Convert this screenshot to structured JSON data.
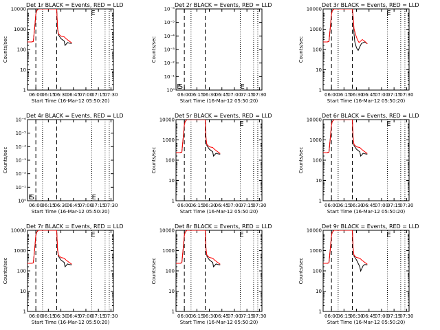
{
  "figure": {
    "background": "#ffffff",
    "axis_color": "#000000",
    "events_color": "#000000",
    "lld_color": "#ff0000"
  },
  "chart_data": [
    {
      "type": "line",
      "title": "Det 1r BLACK = Events, RED = LLD",
      "xlabel": "Start Time (16-Mar-12 05:50:20)",
      "ylabel": "Counts/sec",
      "xlim": [
        "05:50",
        "07:33"
      ],
      "ylim": [
        1,
        15000
      ],
      "yscale": "log",
      "xticks": [
        "06:00",
        "06:15",
        "06:30",
        "06:45",
        "07:00",
        "07:15",
        "07:30"
      ],
      "yticks": [
        "1",
        "10",
        "100",
        "1000",
        "10000"
      ],
      "dashed_lines": [
        "06:00",
        "06:25"
      ],
      "dotted_lines": [
        "06:08",
        "07:07",
        "07:23",
        "07:28"
      ],
      "markers": [
        {
          "text": "E",
          "x": "07:06",
          "y": 10000
        }
      ],
      "series": [
        {
          "color": "#000000",
          "x": [
            "05:50",
            "05:55",
            "05:57",
            "05:59",
            "06:00",
            "06:01",
            "06:03",
            "06:25",
            "06:26",
            "06:27",
            "06:30",
            "06:34",
            "06:35",
            "06:38",
            "06:40",
            "06:43"
          ],
          "y": [
            300,
            300,
            320,
            2500,
            8000,
            12000,
            15000,
            15000,
            1500,
            700,
            450,
            330,
            200,
            280,
            260,
            250
          ]
        },
        {
          "color": "#ff0000",
          "x": [
            "05:50",
            "05:55",
            "05:57",
            "05:59",
            "06:00",
            "06:01",
            "06:03",
            "06:25",
            "06:26",
            "06:27",
            "06:30",
            "06:34",
            "06:36",
            "06:40",
            "06:43"
          ],
          "y": [
            300,
            300,
            320,
            2500,
            8000,
            12000,
            15000,
            15000,
            1600,
            800,
            600,
            550,
            450,
            330,
            270
          ]
        }
      ]
    },
    {
      "type": "line",
      "title": "Det 2r BLACK = Events, RED = LLD",
      "xlabel": "Start Time (16-Mar-12 05:50:20)",
      "ylabel": "Counts/sec",
      "xlim": [
        "05:50",
        "07:33"
      ],
      "ylim": [
        1,
        1e-06
      ],
      "yscale": "log",
      "xticks": [
        "06:00",
        "06:15",
        "06:30",
        "06:45",
        "07:00",
        "07:15",
        "07:30"
      ],
      "yticks": [
        "10⁰",
        "10⁻¹",
        "10⁻²",
        "10⁻³",
        "10⁻⁴",
        "10⁻⁵",
        "10⁻⁶"
      ],
      "dashed_lines": [
        "06:00",
        "06:25"
      ],
      "dotted_lines": [
        "06:08",
        "07:07",
        "07:23",
        "07:28"
      ],
      "markers": [
        {
          "text": "E",
          "x": "05:51",
          "y": 1.4
        },
        {
          "text": "S",
          "x": "05:53",
          "y": 1.4
        },
        {
          "text": "E",
          "x": "07:07",
          "y": 1.4
        }
      ],
      "series": []
    },
    {
      "type": "line",
      "title": "Det 3r BLACK = Events, RED = LLD",
      "xlabel": "Start Time (16-Mar-12 05:50:20)",
      "ylabel": "Counts/sec",
      "xlim": [
        "05:50",
        "07:33"
      ],
      "ylim": [
        1,
        15000
      ],
      "yscale": "log",
      "xticks": [
        "06:00",
        "06:15",
        "06:30",
        "06:45",
        "07:00",
        "07:15",
        "07:30"
      ],
      "yticks": [
        "1",
        "10",
        "100",
        "1000",
        "10000"
      ],
      "dashed_lines": [
        "06:00",
        "06:25"
      ],
      "dotted_lines": [
        "06:08",
        "07:07",
        "07:23",
        "07:28"
      ],
      "markers": [
        {
          "text": "E",
          "x": "07:06",
          "y": 10000
        }
      ],
      "series": [
        {
          "color": "#000000",
          "x": [
            "05:50",
            "05:55",
            "05:57",
            "05:59",
            "06:00",
            "06:01",
            "06:03",
            "06:25",
            "06:26",
            "06:27",
            "06:28",
            "06:30",
            "06:32",
            "06:34",
            "06:36",
            "06:40",
            "06:43"
          ],
          "y": [
            300,
            300,
            320,
            2500,
            8000,
            12000,
            15000,
            15000,
            5000,
            800,
            300,
            150,
            110,
            170,
            250,
            300,
            240
          ]
        },
        {
          "color": "#ff0000",
          "x": [
            "05:50",
            "05:55",
            "05:57",
            "05:59",
            "06:00",
            "06:01",
            "06:03",
            "06:25",
            "06:26",
            "06:27",
            "06:29",
            "06:31",
            "06:33",
            "06:35",
            "06:37",
            "06:40",
            "06:43"
          ],
          "y": [
            300,
            300,
            320,
            2500,
            8000,
            12000,
            15000,
            15000,
            6000,
            1500,
            700,
            400,
            280,
            330,
            400,
            320,
            240
          ]
        }
      ]
    },
    {
      "type": "line",
      "title": "Det 4r BLACK = Events, RED = LLD",
      "xlabel": "Start Time (16-Mar-12 05:50:20)",
      "ylabel": "Counts/sec",
      "xlim": [
        "05:50",
        "07:33"
      ],
      "ylim": [
        1,
        1e-06
      ],
      "yscale": "log",
      "xticks": [
        "06:00",
        "06:15",
        "06:30",
        "06:45",
        "07:00",
        "07:15",
        "07:30"
      ],
      "yticks": [
        "10⁰",
        "10⁻¹",
        "10⁻²",
        "10⁻³",
        "10⁻⁴",
        "10⁻⁵",
        "10⁻⁶"
      ],
      "dashed_lines": [
        "06:00",
        "06:25"
      ],
      "dotted_lines": [
        "06:08",
        "07:07",
        "07:23",
        "07:28"
      ],
      "markers": [
        {
          "text": "E",
          "x": "05:51",
          "y": 1.4
        },
        {
          "text": "S",
          "x": "05:53",
          "y": 1.4
        },
        {
          "text": "E",
          "x": "07:07",
          "y": 1.4
        }
      ],
      "series": []
    },
    {
      "type": "line",
      "title": "Det 5r BLACK = Events, RED = LLD",
      "xlabel": "Start Time (16-Mar-12 05:50:20)",
      "ylabel": "Counts/sec",
      "xlim": [
        "05:50",
        "07:33"
      ],
      "ylim": [
        1,
        15000
      ],
      "yscale": "log",
      "xticks": [
        "06:00",
        "06:15",
        "06:30",
        "06:45",
        "07:00",
        "07:15",
        "07:30"
      ],
      "yticks": [
        "1",
        "10",
        "100",
        "1000",
        "10000"
      ],
      "dashed_lines": [
        "06:00",
        "06:25"
      ],
      "dotted_lines": [
        "06:08",
        "07:07",
        "07:23",
        "07:28"
      ],
      "markers": [
        {
          "text": "E",
          "x": "07:06",
          "y": 10000
        }
      ],
      "series": [
        {
          "color": "#000000",
          "x": [
            "05:50",
            "05:55",
            "05:57",
            "05:59",
            "06:00",
            "06:01",
            "06:03",
            "06:25",
            "06:26",
            "06:27",
            "06:30",
            "06:34",
            "06:35",
            "06:38",
            "06:40",
            "06:43"
          ],
          "y": [
            300,
            300,
            320,
            2500,
            8000,
            12000,
            15000,
            15000,
            1500,
            700,
            450,
            330,
            200,
            280,
            260,
            250
          ]
        },
        {
          "color": "#ff0000",
          "x": [
            "05:50",
            "05:55",
            "05:57",
            "05:59",
            "06:00",
            "06:01",
            "06:03",
            "06:25",
            "06:26",
            "06:27",
            "06:30",
            "06:34",
            "06:36",
            "06:40",
            "06:43"
          ],
          "y": [
            300,
            300,
            320,
            2500,
            8000,
            12000,
            15000,
            15000,
            1600,
            800,
            600,
            550,
            450,
            330,
            270
          ]
        }
      ]
    },
    {
      "type": "line",
      "title": "Det 6r BLACK = Events, RED = LLD",
      "xlabel": "Start Time (16-Mar-12 05:50:20)",
      "ylabel": "Counts/sec",
      "xlim": [
        "05:50",
        "07:33"
      ],
      "ylim": [
        1,
        15000
      ],
      "yscale": "log",
      "xticks": [
        "06:00",
        "06:15",
        "06:30",
        "06:45",
        "07:00",
        "07:15",
        "07:30"
      ],
      "yticks": [
        "1",
        "10",
        "100",
        "1000",
        "10000"
      ],
      "dashed_lines": [
        "06:00",
        "06:25"
      ],
      "dotted_lines": [
        "06:08",
        "07:07",
        "07:23",
        "07:28"
      ],
      "markers": [
        {
          "text": "E",
          "x": "07:06",
          "y": 10000
        }
      ],
      "series": [
        {
          "color": "#000000",
          "x": [
            "05:50",
            "05:55",
            "05:57",
            "05:59",
            "06:00",
            "06:01",
            "06:03",
            "06:25",
            "06:26",
            "06:27",
            "06:30",
            "06:34",
            "06:35",
            "06:38",
            "06:40",
            "06:43"
          ],
          "y": [
            300,
            300,
            320,
            2500,
            8000,
            12000,
            15000,
            15000,
            1500,
            700,
            450,
            330,
            200,
            280,
            260,
            250
          ]
        },
        {
          "color": "#ff0000",
          "x": [
            "05:50",
            "05:55",
            "05:57",
            "05:59",
            "06:00",
            "06:01",
            "06:03",
            "06:25",
            "06:26",
            "06:27",
            "06:30",
            "06:34",
            "06:36",
            "06:40",
            "06:43"
          ],
          "y": [
            300,
            300,
            320,
            2500,
            8000,
            12000,
            15000,
            15000,
            1600,
            800,
            600,
            550,
            450,
            330,
            270
          ]
        }
      ]
    },
    {
      "type": "line",
      "title": "Det 7r BLACK = Events, RED = LLD",
      "xlabel": "Start Time (16-Mar-12 05:50:20)",
      "ylabel": "Counts/sec",
      "xlim": [
        "05:50",
        "07:33"
      ],
      "ylim": [
        1,
        15000
      ],
      "yscale": "log",
      "xticks": [
        "06:00",
        "06:15",
        "06:30",
        "06:45",
        "07:00",
        "07:15",
        "07:30"
      ],
      "yticks": [
        "1",
        "10",
        "100",
        "1000",
        "10000"
      ],
      "dashed_lines": [
        "06:00",
        "06:25"
      ],
      "dotted_lines": [
        "06:08",
        "07:07",
        "07:23",
        "07:28"
      ],
      "markers": [
        {
          "text": "E",
          "x": "07:06",
          "y": 10000
        }
      ],
      "series": [
        {
          "color": "#000000",
          "x": [
            "05:50",
            "05:55",
            "05:57",
            "05:59",
            "06:00",
            "06:01",
            "06:03",
            "06:25",
            "06:26",
            "06:27",
            "06:30",
            "06:34",
            "06:35",
            "06:38",
            "06:40",
            "06:43"
          ],
          "y": [
            300,
            300,
            320,
            2500,
            8000,
            12000,
            15000,
            15000,
            1500,
            700,
            450,
            330,
            200,
            280,
            260,
            250
          ]
        },
        {
          "color": "#ff0000",
          "x": [
            "05:50",
            "05:55",
            "05:57",
            "05:59",
            "06:00",
            "06:01",
            "06:03",
            "06:25",
            "06:26",
            "06:27",
            "06:30",
            "06:34",
            "06:36",
            "06:40",
            "06:43"
          ],
          "y": [
            300,
            300,
            320,
            2500,
            8000,
            12000,
            15000,
            15000,
            1600,
            800,
            600,
            550,
            450,
            330,
            270
          ]
        }
      ]
    },
    {
      "type": "line",
      "title": "Det 8r BLACK = Events, RED = LLD",
      "xlabel": "Start Time (16-Mar-12 05:50:20)",
      "ylabel": "Counts/sec",
      "xlim": [
        "05:50",
        "07:33"
      ],
      "ylim": [
        1,
        15000
      ],
      "yscale": "log",
      "xticks": [
        "06:00",
        "06:15",
        "06:30",
        "06:45",
        "07:00",
        "07:15",
        "07:30"
      ],
      "yticks": [
        "1",
        "10",
        "100",
        "1000",
        "10000"
      ],
      "dashed_lines": [
        "06:00",
        "06:25"
      ],
      "dotted_lines": [
        "06:08",
        "07:07",
        "07:23",
        "07:28"
      ],
      "markers": [
        {
          "text": "E",
          "x": "07:06",
          "y": 10000
        }
      ],
      "series": [
        {
          "color": "#000000",
          "x": [
            "05:50",
            "05:55",
            "05:57",
            "05:59",
            "06:00",
            "06:01",
            "06:03",
            "06:25",
            "06:26",
            "06:27",
            "06:30",
            "06:34",
            "06:35",
            "06:38",
            "06:40",
            "06:43"
          ],
          "y": [
            300,
            300,
            320,
            2500,
            8000,
            12000,
            15000,
            15000,
            1500,
            700,
            450,
            330,
            200,
            280,
            260,
            250
          ]
        },
        {
          "color": "#ff0000",
          "x": [
            "05:50",
            "05:55",
            "05:57",
            "05:59",
            "06:00",
            "06:01",
            "06:03",
            "06:25",
            "06:26",
            "06:27",
            "06:30",
            "06:34",
            "06:36",
            "06:40",
            "06:43"
          ],
          "y": [
            300,
            300,
            320,
            2500,
            8000,
            12000,
            15000,
            15000,
            1600,
            800,
            600,
            550,
            450,
            330,
            270
          ]
        }
      ]
    },
    {
      "type": "line",
      "title": "Det 9r BLACK = Events, RED = LLD",
      "xlabel": "Start Time (16-Mar-12 05:50:20)",
      "ylabel": "Counts/sec",
      "xlim": [
        "05:50",
        "07:33"
      ],
      "ylim": [
        1,
        15000
      ],
      "yscale": "log",
      "xticks": [
        "06:00",
        "06:15",
        "06:30",
        "06:45",
        "07:00",
        "07:15",
        "07:30"
      ],
      "yticks": [
        "1",
        "10",
        "100",
        "1000",
        "10000"
      ],
      "dashed_lines": [
        "06:00",
        "06:25"
      ],
      "dotted_lines": [
        "06:08",
        "07:07",
        "07:23",
        "07:28"
      ],
      "markers": [
        {
          "text": "E",
          "x": "07:06",
          "y": 10000
        }
      ],
      "series": [
        {
          "color": "#000000",
          "x": [
            "05:50",
            "05:55",
            "05:57",
            "05:59",
            "06:00",
            "06:01",
            "06:03",
            "06:25",
            "06:26",
            "06:27",
            "06:30",
            "06:34",
            "06:35",
            "06:38",
            "06:40",
            "06:43"
          ],
          "y": [
            300,
            300,
            320,
            2500,
            8000,
            12000,
            15000,
            15000,
            1500,
            700,
            450,
            200,
            120,
            230,
            260,
            250
          ]
        },
        {
          "color": "#ff0000",
          "x": [
            "05:50",
            "05:55",
            "05:57",
            "05:59",
            "06:00",
            "06:01",
            "06:03",
            "06:25",
            "06:26",
            "06:27",
            "06:30",
            "06:34",
            "06:36",
            "06:40",
            "06:43"
          ],
          "y": [
            300,
            300,
            320,
            2500,
            8000,
            12000,
            15000,
            15000,
            1600,
            800,
            600,
            550,
            450,
            330,
            270
          ]
        }
      ]
    }
  ]
}
